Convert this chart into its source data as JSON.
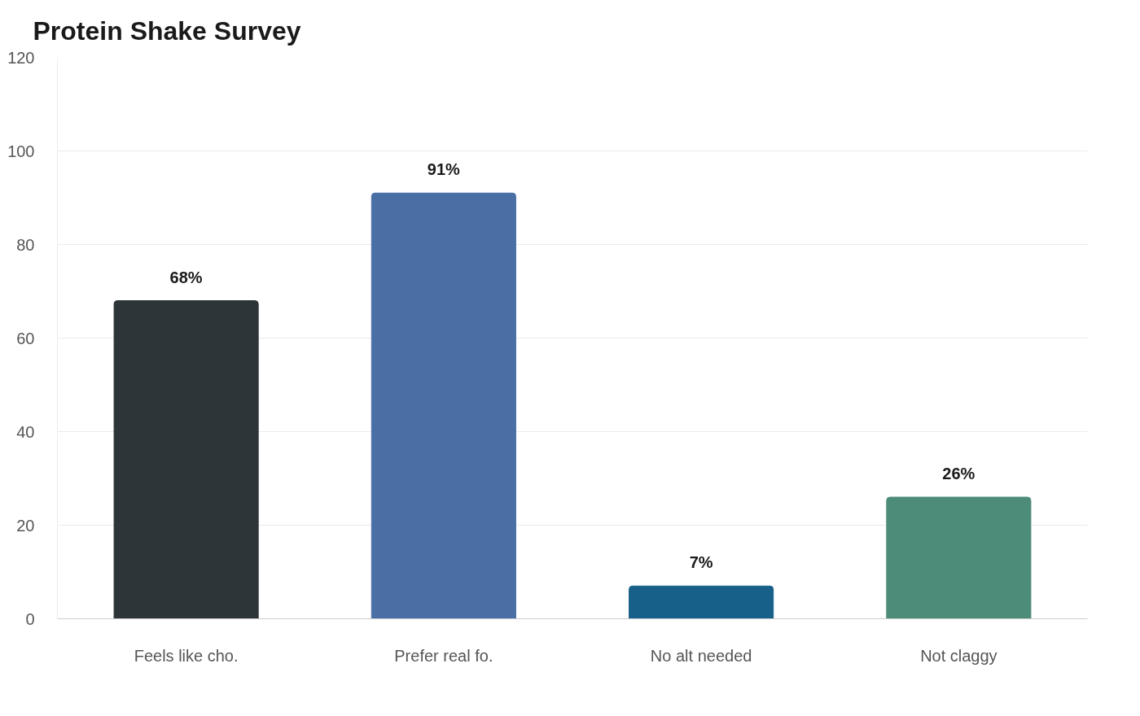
{
  "chart_data": {
    "type": "bar",
    "title": "Protein Shake Survey",
    "categories": [
      "Feels like cho.",
      "Prefer real fo.",
      "No alt needed",
      "Not claggy"
    ],
    "values": [
      68,
      91,
      7,
      26
    ],
    "colors": [
      "#2e3538",
      "#4a6fa5",
      "#17608a",
      "#4e8c7a"
    ],
    "value_labels": [
      "68%",
      "91%",
      "7%",
      "26%"
    ],
    "ylim": [
      0,
      120
    ],
    "yticks": [
      0,
      20,
      40,
      60,
      80,
      100,
      120
    ],
    "grid": "y"
  }
}
